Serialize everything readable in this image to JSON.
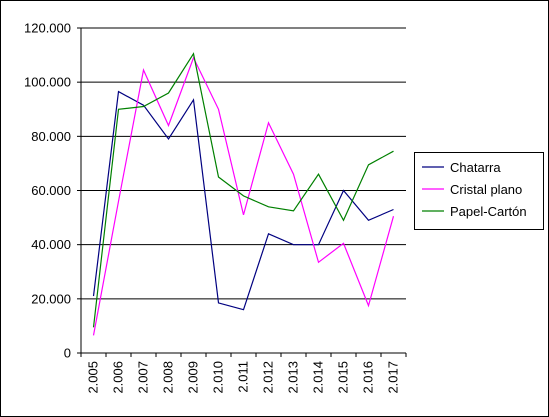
{
  "chart_data": {
    "type": "line",
    "categories": [
      "2.005",
      "2.006",
      "2.007",
      "2.008",
      "2.009",
      "2.010",
      "2.011",
      "2.012",
      "2.013",
      "2.014",
      "2.015",
      "2.016",
      "2.017"
    ],
    "ylim": [
      0,
      120000
    ],
    "yticks": [
      0,
      20000,
      40000,
      60000,
      80000,
      100000,
      120000
    ],
    "ytick_labels": [
      "0",
      "20.000",
      "40.000",
      "60.000",
      "80.000",
      "100.000",
      "120.000"
    ],
    "grid": "horizontal",
    "legend_position": "right",
    "series": [
      {
        "name": "Chatarra",
        "color": "#000080",
        "values": [
          21000,
          96500,
          91500,
          79000,
          93500,
          18500,
          16000,
          44000,
          40000,
          40000,
          60000,
          49000,
          53000
        ]
      },
      {
        "name": "Cristal plano",
        "color": "#ff00ff",
        "values": [
          6500,
          56000,
          104500,
          84000,
          109000,
          90000,
          51000,
          85000,
          66000,
          33500,
          40500,
          17500,
          50500
        ]
      },
      {
        "name": "Papel-Cartón",
        "color": "#008000",
        "values": [
          9500,
          90000,
          91000,
          96000,
          110500,
          65000,
          58000,
          54000,
          52500,
          66000,
          49000,
          69500,
          74500
        ]
      }
    ]
  }
}
